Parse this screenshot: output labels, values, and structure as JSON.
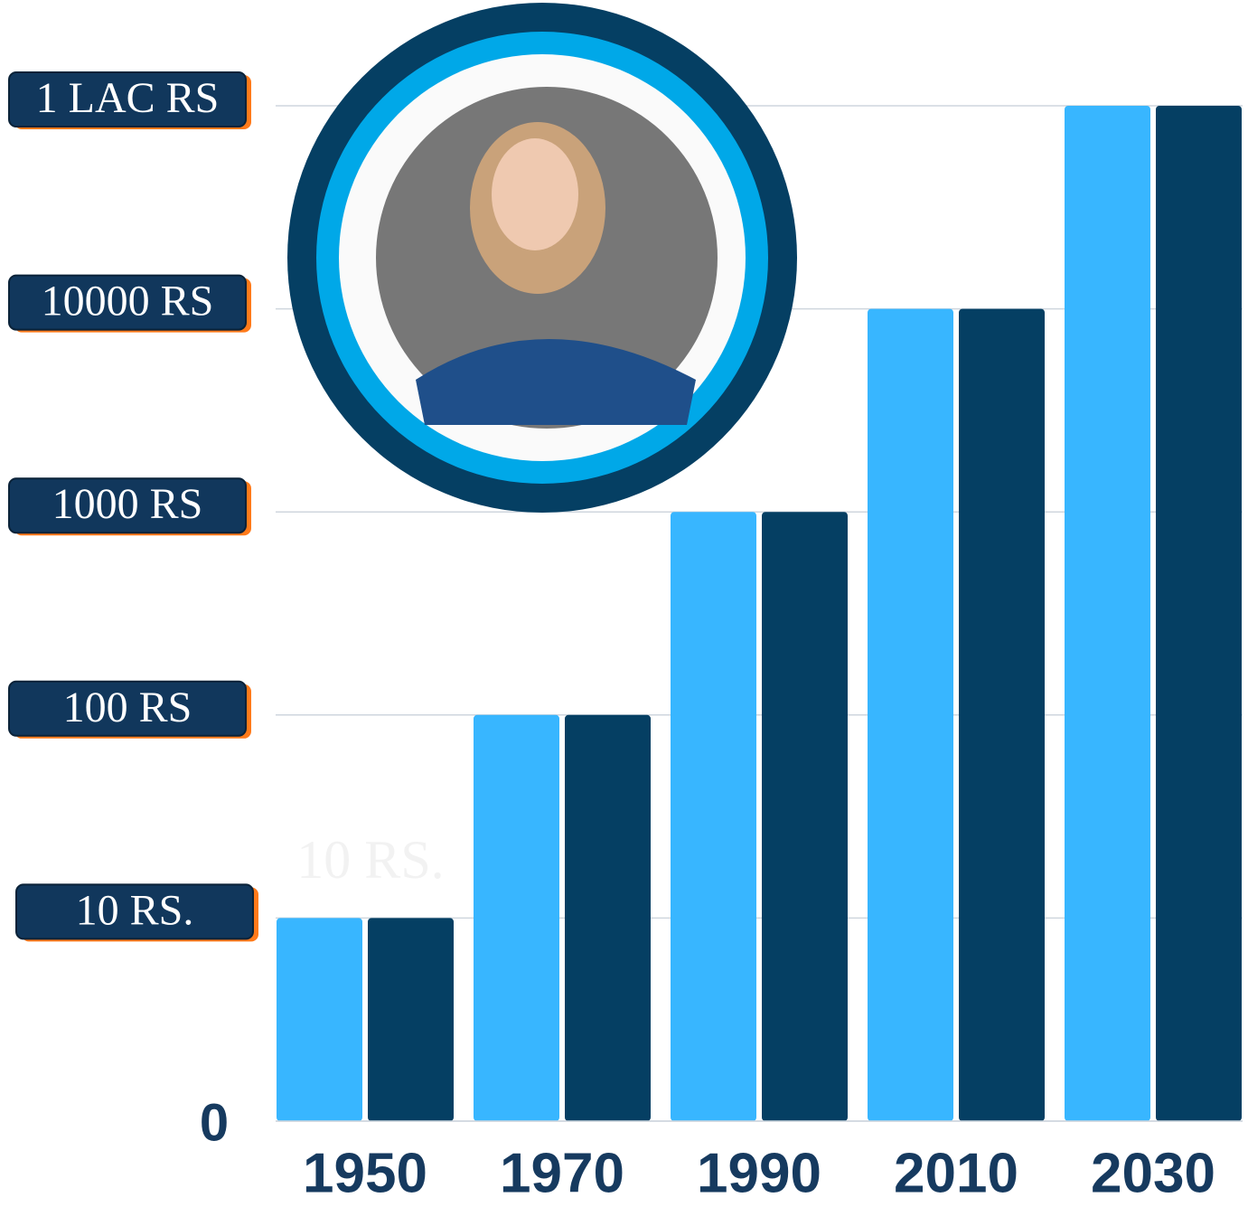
{
  "chart_data": {
    "type": "bar",
    "categories": [
      "1950",
      "1970",
      "1990",
      "2010",
      "2030"
    ],
    "series": [
      {
        "color": "#38b6ff",
        "values": [
          10,
          100,
          1000,
          10000,
          100000
        ]
      },
      {
        "color": "#053f63",
        "values": [
          10,
          100,
          1000,
          10000,
          100000
        ]
      }
    ],
    "yscale": "symlog",
    "linthresh": 10,
    "ylim": [
      0,
      100000
    ],
    "yticks": [
      0,
      {
        "value": 10,
        "label": "10 RS."
      },
      {
        "value": 100,
        "label": "100 RS"
      },
      {
        "value": 1000,
        "label": "1000 RS"
      },
      {
        "value": 10000,
        "label": "10000 RS"
      },
      {
        "value": 100000,
        "label": "1 LAC RS"
      }
    ],
    "grid": true,
    "annotation": "10 RS."
  }
}
